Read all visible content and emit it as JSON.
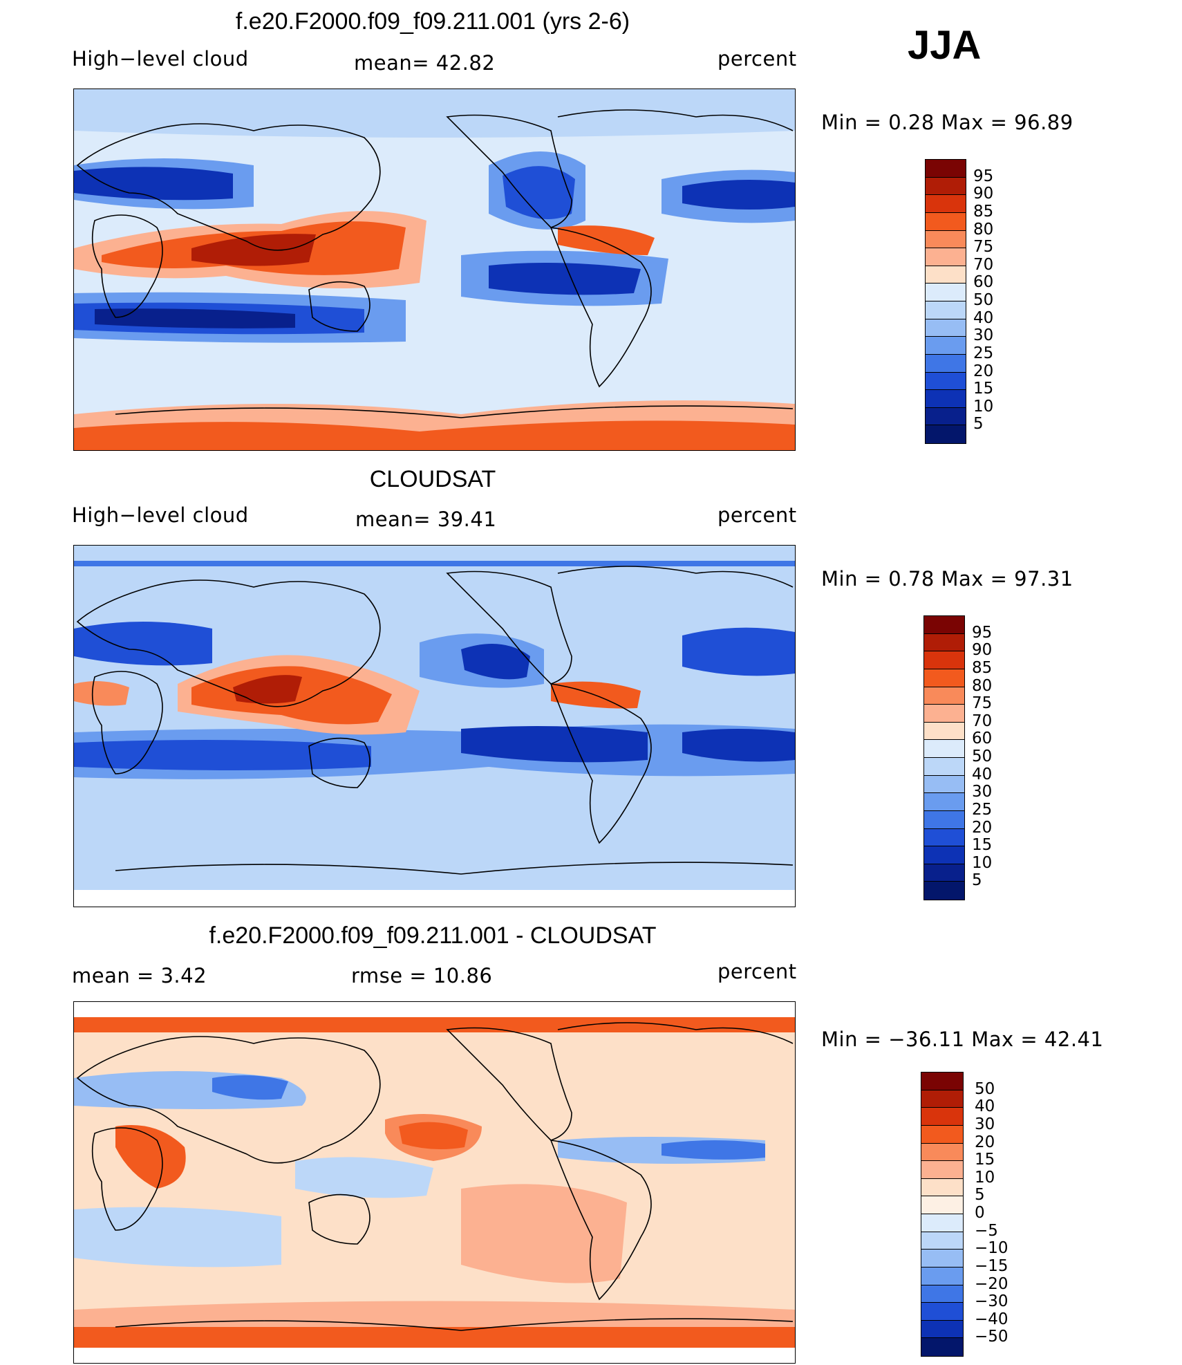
{
  "season": "JJA",
  "panels": [
    {
      "title": "f.e20.F2000.f09_f09.211.001 (yrs 2-6)",
      "left_label": "High−level cloud",
      "center_label": "mean=   42.82",
      "units": "percent",
      "stats": "Min  =     0.28  Max  =    96.89",
      "colorbar": {
        "levels": [
          "95",
          "90",
          "85",
          "80",
          "75",
          "70",
          "60",
          "50",
          "40",
          "30",
          "25",
          "20",
          "15",
          "10",
          "5"
        ],
        "colors": [
          "#7a0403",
          "#b01d06",
          "#d9340c",
          "#f25a1e",
          "#f98a5a",
          "#fcb191",
          "#fde0c8",
          "#dcebfb",
          "#bcd7f8",
          "#97bdf4",
          "#6a9cef",
          "#3f76e6",
          "#1f4fd6",
          "#0d32b5",
          "#08208c",
          "#03166b"
        ]
      }
    },
    {
      "title": "CLOUDSAT",
      "left_label": "High−level cloud",
      "center_label": "mean=   39.41",
      "units": "percent",
      "stats": "Min  =     0.78  Max  =    97.31",
      "colorbar": {
        "levels": [
          "95",
          "90",
          "85",
          "80",
          "75",
          "70",
          "60",
          "50",
          "40",
          "30",
          "25",
          "20",
          "15",
          "10",
          "5"
        ],
        "colors": [
          "#7a0403",
          "#b01d06",
          "#d9340c",
          "#f25a1e",
          "#f98a5a",
          "#fcb191",
          "#fde0c8",
          "#dcebfb",
          "#bcd7f8",
          "#97bdf4",
          "#6a9cef",
          "#3f76e6",
          "#1f4fd6",
          "#0d32b5",
          "#08208c",
          "#03166b"
        ]
      }
    },
    {
      "title": "f.e20.F2000.f09_f09.211.001 - CLOUDSAT",
      "left_label": "mean  =     3.42",
      "center_label": "rmse  =    10.86",
      "units": "percent",
      "stats": "Min  = −36.11  Max  =    42.41",
      "colorbar": {
        "levels": [
          "50",
          "40",
          "30",
          "20",
          "15",
          "10",
          "5",
          "0",
          "−5",
          "−10",
          "−15",
          "−20",
          "−30",
          "−40",
          "−50"
        ],
        "colors": [
          "#7a0403",
          "#b01d06",
          "#d9340c",
          "#f25a1e",
          "#f98a5a",
          "#fcb191",
          "#fde0c8",
          "#fdf0e4",
          "#dcebfb",
          "#bcd7f8",
          "#97bdf4",
          "#6a9cef",
          "#3f76e6",
          "#1f4fd6",
          "#0d32b5",
          "#03166b"
        ]
      }
    }
  ],
  "chart_data": [
    {
      "type": "heatmap",
      "title": "f.e20.F2000.f09_f09.211.001 (yrs 2-6)",
      "variable": "High-level cloud",
      "units": "percent",
      "mean": 42.82,
      "min": 0.28,
      "max": 96.89,
      "contour_levels": [
        5,
        10,
        15,
        20,
        25,
        30,
        40,
        50,
        60,
        70,
        75,
        80,
        85,
        90,
        95
      ]
    },
    {
      "type": "heatmap",
      "title": "CLOUDSAT",
      "variable": "High-level cloud",
      "units": "percent",
      "mean": 39.41,
      "min": 0.78,
      "max": 97.31,
      "contour_levels": [
        5,
        10,
        15,
        20,
        25,
        30,
        40,
        50,
        60,
        70,
        75,
        80,
        85,
        90,
        95
      ]
    },
    {
      "type": "heatmap",
      "title": "f.e20.F2000.f09_f09.211.001 - CLOUDSAT",
      "units": "percent",
      "mean": 3.42,
      "rmse": 10.86,
      "min": -36.11,
      "max": 42.41,
      "contour_levels": [
        -50,
        -40,
        -30,
        -20,
        -15,
        -10,
        -5,
        0,
        5,
        10,
        15,
        20,
        30,
        40,
        50
      ]
    }
  ]
}
